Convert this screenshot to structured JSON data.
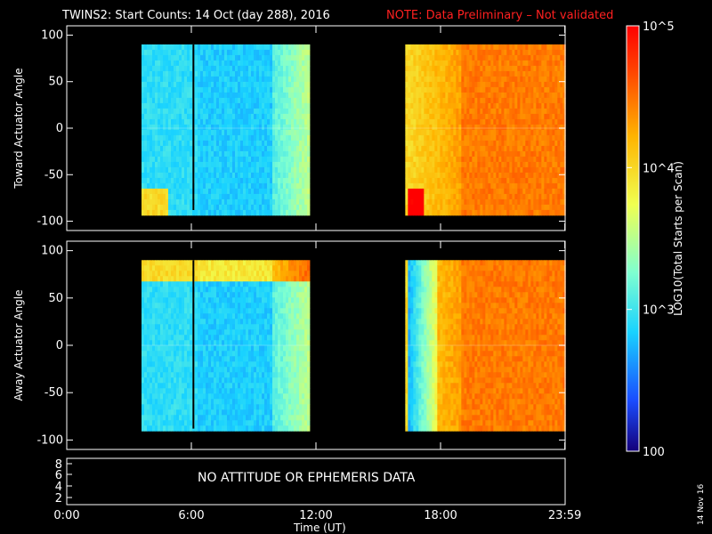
{
  "header": {
    "title": "TWINS2: Start Counts: 14 Oct (day 288), 2016",
    "note": "NOTE: Data Preliminary – Not validated"
  },
  "footer": {
    "xlabel": "Time (UT)",
    "stamp": "14 Nov 16"
  },
  "ephemeris_panel": {
    "message": "NO ATTITUDE OR EPHEMERIS DATA",
    "ytick_labels": [
      "8",
      "6",
      "4",
      "2"
    ]
  },
  "colorbar": {
    "label": "LOG10(Total Starts per Scan)",
    "tick_labels": [
      "10^5",
      "10^4",
      "10^3",
      "100"
    ],
    "scale": "log",
    "range": [
      100,
      100000
    ],
    "colormap": [
      "#14007a",
      "#1a4dff",
      "#19d2ff",
      "#7fffd0",
      "#f0ff50",
      "#ffb400",
      "#ff4000",
      "#ff0000"
    ]
  },
  "colors": {
    "background": "#000000",
    "foreground": "#ffffff",
    "note": "#ff2020"
  },
  "chart_data": [
    {
      "type": "heatmap",
      "panel": "toward",
      "ylabel": "Toward Actuator Angle",
      "xlim": [
        0,
        24
      ],
      "ylim": [
        -110,
        110
      ],
      "xticks": [
        0,
        6,
        12,
        18,
        23.983
      ],
      "xtick_labels": [
        "0:00",
        "6:00",
        "12:00",
        "18:00",
        "23:59"
      ],
      "yticks": [
        100,
        50,
        0,
        -50,
        -100
      ],
      "ytick_labels": [
        "100",
        "50",
        "0",
        "-50",
        "-100"
      ],
      "data_blocks": [
        {
          "start": 3.6,
          "end": 11.6,
          "y_range": [
            -88,
            90
          ]
        },
        {
          "start": 16.3,
          "end": 24.0,
          "y_range": [
            -88,
            90
          ]
        }
      ],
      "gaps": [
        6.1
      ]
    },
    {
      "type": "heatmap",
      "panel": "away",
      "ylabel": "Away Actuator Angle",
      "xlim": [
        0,
        24
      ],
      "ylim": [
        -110,
        110
      ],
      "xticks": [
        0,
        6,
        12,
        18,
        23.983
      ],
      "xtick_labels": [
        "0:00",
        "6:00",
        "12:00",
        "18:00",
        "23:59"
      ],
      "yticks": [
        100,
        50,
        0,
        -50,
        -100
      ],
      "ytick_labels": [
        "100",
        "50",
        "0",
        "-50",
        "-100"
      ],
      "data_blocks": [
        {
          "start": 3.6,
          "end": 11.6,
          "y_range": [
            -88,
            90
          ]
        },
        {
          "start": 16.3,
          "end": 24.0,
          "y_range": [
            -88,
            90
          ]
        }
      ],
      "gaps": [
        6.1
      ]
    }
  ]
}
